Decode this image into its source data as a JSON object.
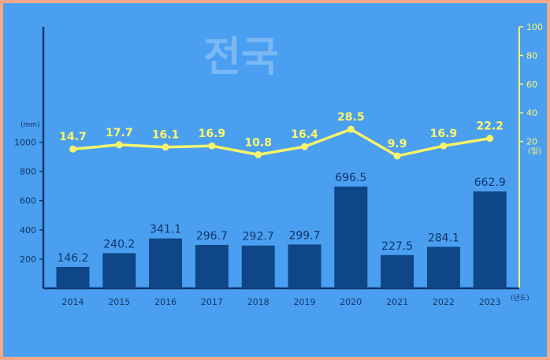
{
  "chart_data": {
    "type": "bar+line",
    "title": "전국",
    "categories": [
      "2014",
      "2015",
      "2016",
      "2017",
      "2018",
      "2019",
      "2020",
      "2021",
      "2022",
      "2023"
    ],
    "xlabel": "(년도)",
    "ylabel": "(mm)",
    "ylabel_right": "(일)",
    "ylim": [
      0,
      1800
    ],
    "yticks": [
      200,
      400,
      600,
      800,
      1000
    ],
    "ylim_right": [
      0,
      100
    ],
    "yticks_right": [
      20,
      40,
      60,
      80,
      100
    ],
    "series": [
      {
        "type": "bar",
        "axis": "left",
        "values": [
          146.2,
          240.2,
          341.1,
          296.7,
          292.7,
          299.7,
          696.5,
          227.5,
          284.1,
          662.9
        ]
      },
      {
        "type": "line",
        "axis": "right",
        "values": [
          14.7,
          17.7,
          16.1,
          16.9,
          10.8,
          16.4,
          28.5,
          9.9,
          16.9,
          22.2
        ]
      }
    ],
    "colors": {
      "bar": "#0e4687",
      "line": "#f6f46a",
      "axis_left": "#10366a",
      "axis_right": "#fff86a",
      "background": "#4a9ff0",
      "border": "#f4a98a"
    }
  }
}
